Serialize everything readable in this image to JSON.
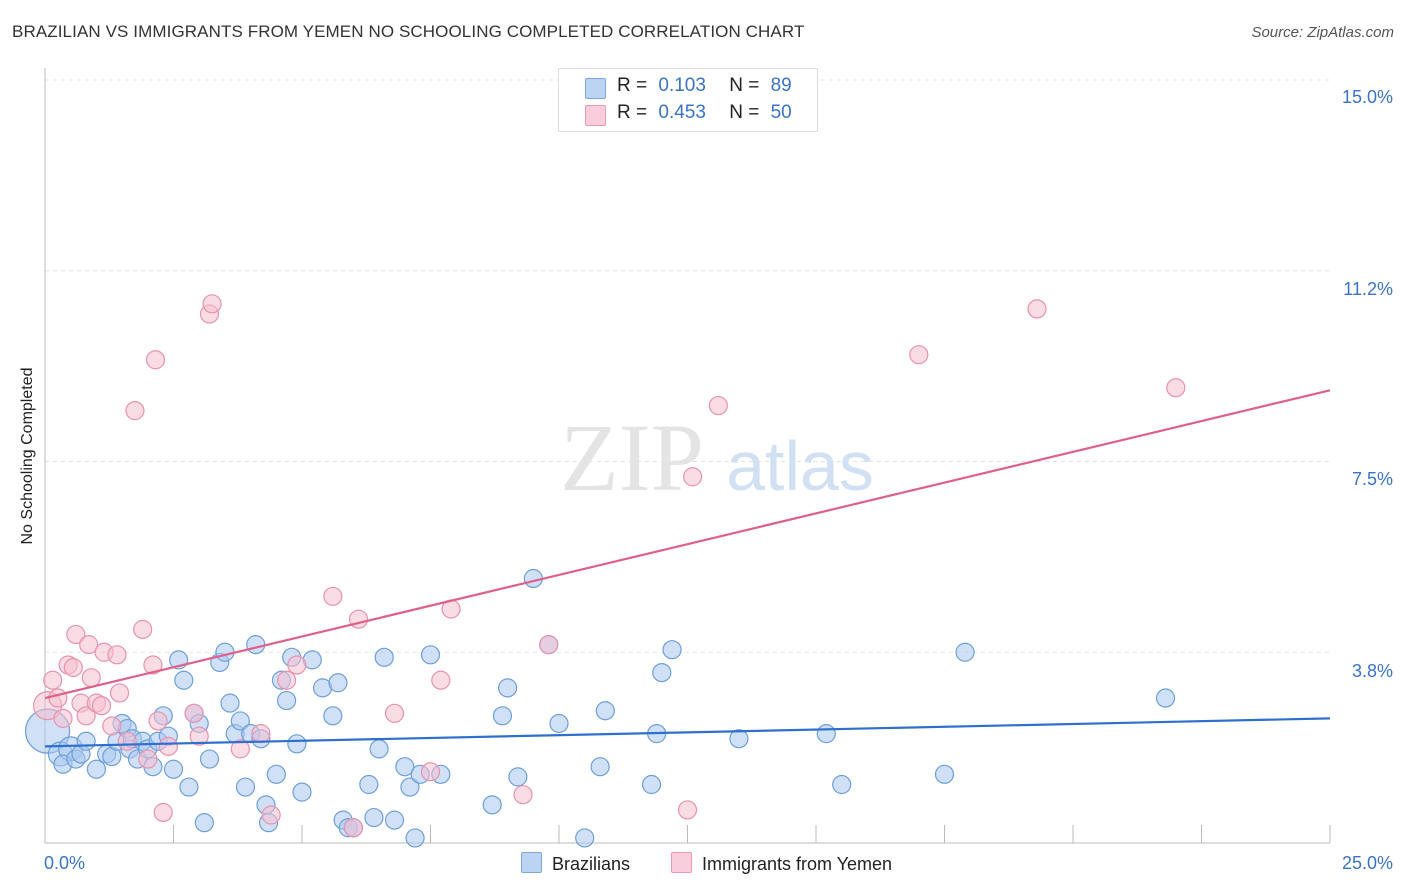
{
  "header": {
    "title": "BRAZILIAN VS IMMIGRANTS FROM YEMEN NO SCHOOLING COMPLETED CORRELATION CHART",
    "source": "Source: ZipAtlas.com"
  },
  "watermark": {
    "zip": "ZIP",
    "atlas": "atlas"
  },
  "legend_top": [
    {
      "r_label": "R =",
      "r_value": "0.103",
      "n_label": "N =",
      "n_value": "89"
    },
    {
      "r_label": "R =",
      "r_value": "0.453",
      "n_label": "N =",
      "n_value": "50"
    }
  ],
  "chart_data": {
    "type": "scatter",
    "ylabel": "No Schooling Completed",
    "x_tick_labels": [
      "0.0%",
      "25.0%"
    ],
    "y_tick_labels": [
      "15.0%",
      "11.2%",
      "7.5%",
      "3.8%"
    ],
    "xlim": [
      0,
      25
    ],
    "ylim": [
      0,
      15
    ],
    "grid": true,
    "legend_position": "top-center",
    "colors": {
      "brazilians_fill": "#a9c8f0",
      "brazilians_stroke": "#6f9fd8",
      "brazilians_line": "#2f6fcf",
      "yemen_fill": "#f6bfd0",
      "yemen_stroke": "#e892ae",
      "yemen_line": "#e0608a",
      "tick_text": "#3b73c8"
    },
    "series": [
      {
        "name": "Brazilians",
        "r": 0.103,
        "n": 89,
        "trend": {
          "x": [
            0,
            25
          ],
          "y": [
            1.9,
            2.45
          ]
        },
        "points": [
          [
            0.05,
            2.2,
            22
          ],
          [
            0.3,
            1.75,
            12
          ],
          [
            0.5,
            1.85,
            12
          ],
          [
            0.35,
            1.55,
            9
          ],
          [
            0.6,
            1.65,
            9
          ],
          [
            0.7,
            1.75,
            9
          ],
          [
            0.8,
            2.0,
            9
          ],
          [
            1.0,
            1.45,
            9
          ],
          [
            1.2,
            1.75,
            9
          ],
          [
            1.3,
            1.7,
            9
          ],
          [
            1.4,
            2.0,
            9
          ],
          [
            1.5,
            2.35,
            9
          ],
          [
            1.6,
            2.25,
            9
          ],
          [
            1.65,
            1.85,
            9
          ],
          [
            1.7,
            2.05,
            9
          ],
          [
            1.8,
            1.65,
            9
          ],
          [
            1.9,
            2.0,
            9
          ],
          [
            2.0,
            1.85,
            9
          ],
          [
            2.1,
            1.5,
            9
          ],
          [
            2.2,
            2.0,
            9
          ],
          [
            2.3,
            2.5,
            9
          ],
          [
            2.4,
            2.1,
            9
          ],
          [
            2.5,
            1.45,
            9
          ],
          [
            2.6,
            3.6,
            9
          ],
          [
            2.7,
            3.2,
            9
          ],
          [
            2.8,
            1.1,
            9
          ],
          [
            2.9,
            2.55,
            9
          ],
          [
            3.0,
            2.35,
            9
          ],
          [
            3.1,
            0.4,
            9
          ],
          [
            3.2,
            1.65,
            9
          ],
          [
            3.4,
            3.55,
            9
          ],
          [
            3.5,
            3.75,
            9
          ],
          [
            3.6,
            2.75,
            9
          ],
          [
            3.7,
            2.15,
            9
          ],
          [
            3.8,
            2.4,
            9
          ],
          [
            3.9,
            1.1,
            9
          ],
          [
            4.0,
            2.15,
            9
          ],
          [
            4.1,
            3.9,
            9
          ],
          [
            4.2,
            2.05,
            9
          ],
          [
            4.3,
            0.75,
            9
          ],
          [
            4.35,
            0.4,
            9
          ],
          [
            4.5,
            1.35,
            9
          ],
          [
            4.6,
            3.2,
            9
          ],
          [
            4.7,
            2.8,
            9
          ],
          [
            4.8,
            3.65,
            9
          ],
          [
            4.9,
            1.95,
            9
          ],
          [
            5.0,
            1.0,
            9
          ],
          [
            5.2,
            3.6,
            9
          ],
          [
            5.4,
            3.05,
            9
          ],
          [
            5.6,
            2.5,
            9
          ],
          [
            5.7,
            3.15,
            9
          ],
          [
            5.8,
            0.45,
            9
          ],
          [
            5.9,
            0.3,
            9
          ],
          [
            6.0,
            0.3,
            9
          ],
          [
            6.3,
            1.15,
            9
          ],
          [
            6.4,
            0.5,
            9
          ],
          [
            6.5,
            1.85,
            9
          ],
          [
            6.6,
            3.65,
            9
          ],
          [
            6.8,
            0.45,
            9
          ],
          [
            7.0,
            1.5,
            9
          ],
          [
            7.1,
            1.1,
            9
          ],
          [
            7.2,
            0.1,
            9
          ],
          [
            7.3,
            1.35,
            9
          ],
          [
            7.5,
            3.7,
            9
          ],
          [
            7.7,
            1.35,
            9
          ],
          [
            8.7,
            0.75,
            9
          ],
          [
            8.9,
            2.5,
            9
          ],
          [
            9.0,
            3.05,
            9
          ],
          [
            9.2,
            1.3,
            9
          ],
          [
            9.5,
            5.2,
            9
          ],
          [
            9.8,
            3.9,
            9
          ],
          [
            10.0,
            2.35,
            9
          ],
          [
            10.5,
            0.1,
            9
          ],
          [
            10.8,
            1.5,
            9
          ],
          [
            10.9,
            2.6,
            9
          ],
          [
            11.8,
            1.15,
            9
          ],
          [
            11.9,
            2.15,
            9
          ],
          [
            12.0,
            3.35,
            9
          ],
          [
            12.2,
            3.8,
            9
          ],
          [
            13.5,
            2.05,
            9
          ],
          [
            15.2,
            2.15,
            9
          ],
          [
            15.5,
            1.15,
            9
          ],
          [
            17.5,
            1.35,
            9
          ],
          [
            17.9,
            3.75,
            9
          ],
          [
            21.8,
            2.85,
            9
          ]
        ]
      },
      {
        "name": "Immigrants from Yemen",
        "r": 0.453,
        "n": 50,
        "trend": {
          "x": [
            0,
            25
          ],
          "y": [
            2.85,
            8.9
          ]
        },
        "points": [
          [
            0.05,
            2.7,
            14
          ],
          [
            0.15,
            3.2,
            9
          ],
          [
            0.25,
            2.85,
            9
          ],
          [
            0.35,
            2.45,
            9
          ],
          [
            0.45,
            3.5,
            9
          ],
          [
            0.55,
            3.45,
            9
          ],
          [
            0.6,
            4.1,
            9
          ],
          [
            0.7,
            2.75,
            9
          ],
          [
            0.8,
            2.5,
            9
          ],
          [
            0.85,
            3.9,
            9
          ],
          [
            0.9,
            3.25,
            9
          ],
          [
            1.0,
            2.75,
            9
          ],
          [
            1.1,
            2.7,
            9
          ],
          [
            1.15,
            3.75,
            9
          ],
          [
            1.3,
            2.3,
            9
          ],
          [
            1.4,
            3.7,
            9
          ],
          [
            1.45,
            2.95,
            9
          ],
          [
            1.6,
            2.0,
            9
          ],
          [
            1.75,
            8.5,
            9
          ],
          [
            1.9,
            4.2,
            9
          ],
          [
            2.0,
            1.65,
            9
          ],
          [
            2.1,
            3.5,
            9
          ],
          [
            2.15,
            9.5,
            9
          ],
          [
            2.2,
            2.4,
            9
          ],
          [
            2.3,
            0.6,
            9
          ],
          [
            2.4,
            1.9,
            9
          ],
          [
            2.9,
            2.55,
            9
          ],
          [
            3.0,
            2.1,
            9
          ],
          [
            3.2,
            10.4,
            9
          ],
          [
            3.25,
            10.6,
            9
          ],
          [
            3.8,
            1.85,
            9
          ],
          [
            4.2,
            2.15,
            9
          ],
          [
            4.4,
            0.55,
            9
          ],
          [
            4.7,
            3.2,
            9
          ],
          [
            4.9,
            3.5,
            9
          ],
          [
            5.6,
            4.85,
            9
          ],
          [
            6.0,
            0.3,
            9
          ],
          [
            6.1,
            4.4,
            9
          ],
          [
            6.8,
            2.55,
            9
          ],
          [
            7.5,
            1.4,
            9
          ],
          [
            7.7,
            3.2,
            9
          ],
          [
            7.9,
            4.6,
            9
          ],
          [
            9.3,
            0.95,
            9
          ],
          [
            9.8,
            3.9,
            9
          ],
          [
            12.5,
            0.65,
            9
          ],
          [
            12.6,
            7.2,
            9
          ],
          [
            13.1,
            8.6,
            9
          ],
          [
            17.0,
            9.6,
            9
          ],
          [
            19.3,
            10.5,
            9
          ],
          [
            22.0,
            8.95,
            9
          ]
        ]
      }
    ]
  }
}
